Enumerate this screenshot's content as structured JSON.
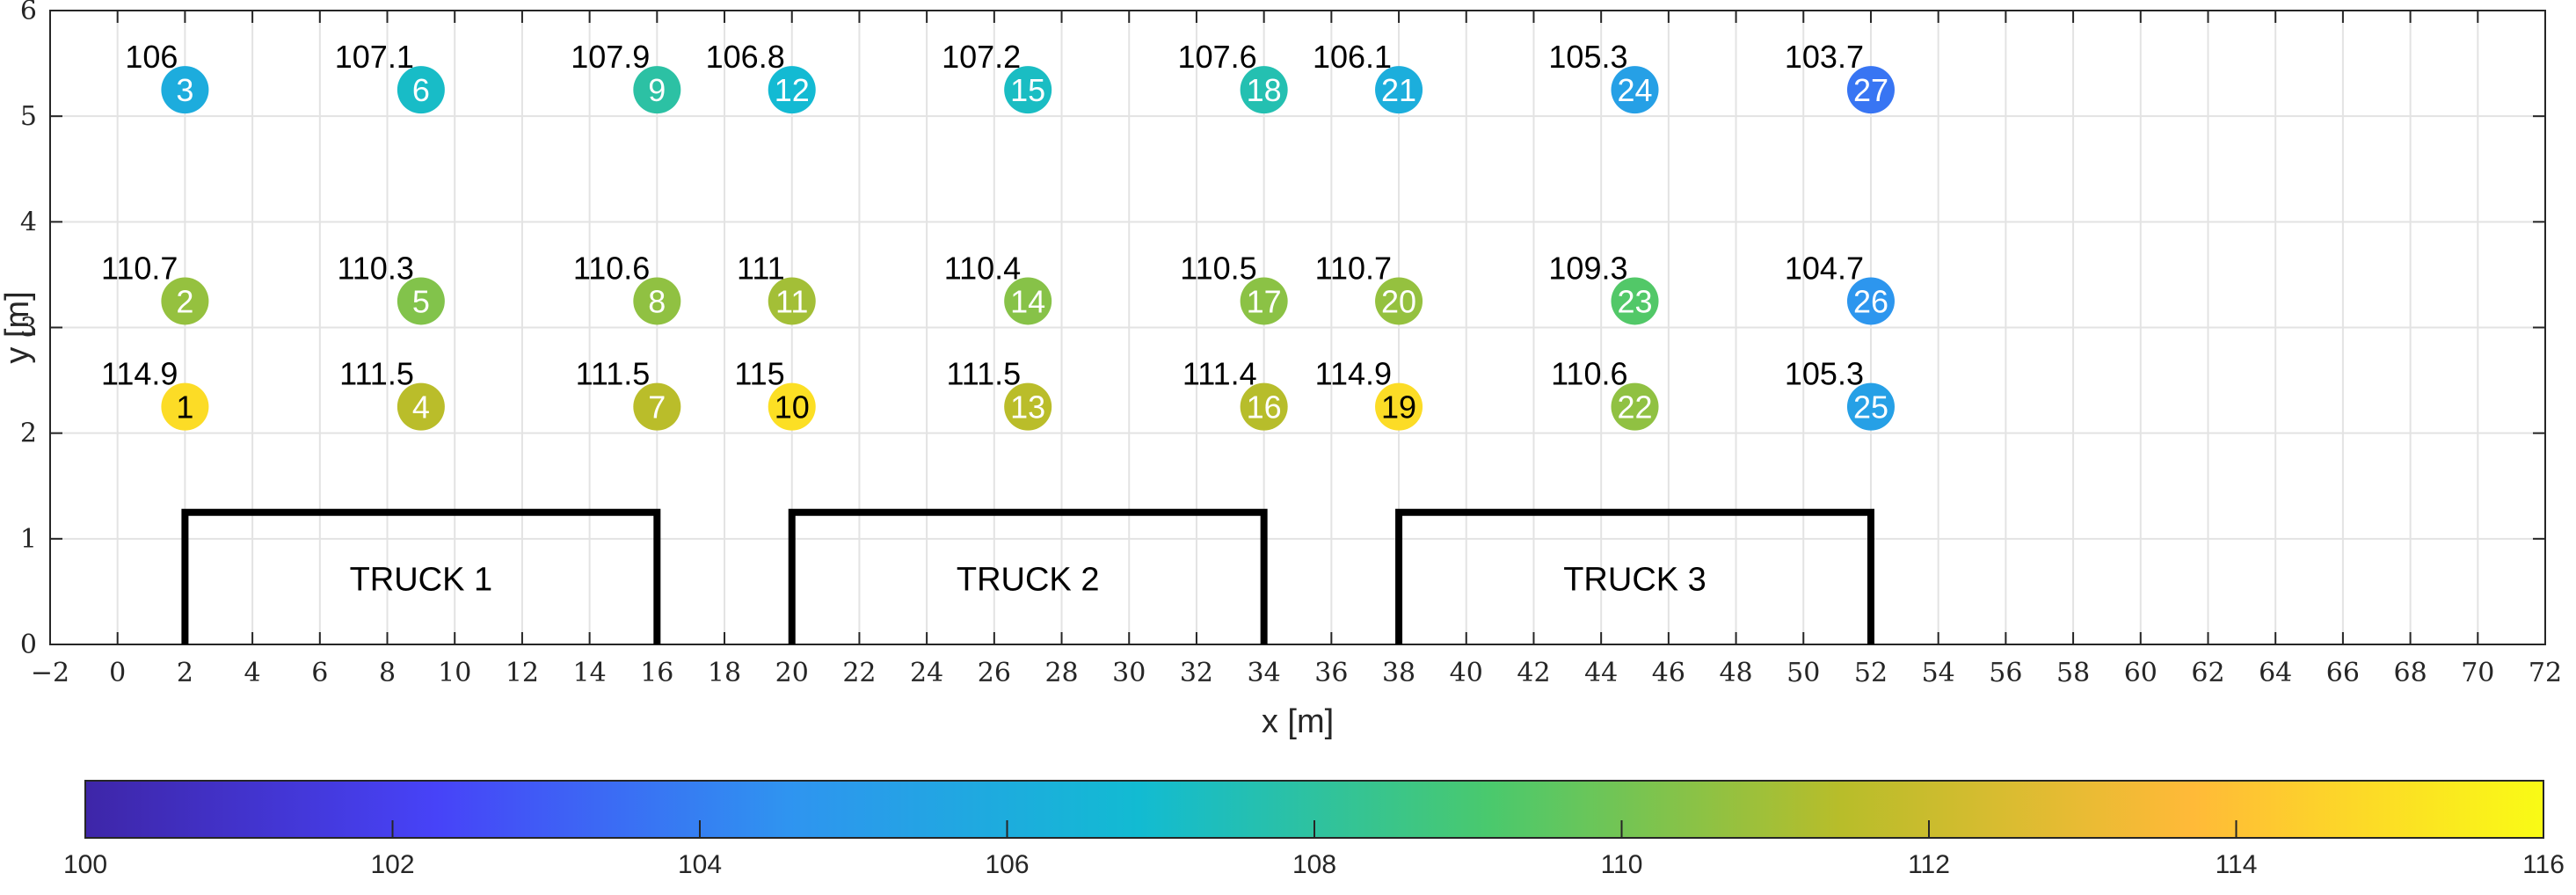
{
  "chart_data": {
    "type": "scatter",
    "title": "",
    "xlabel": "x [m]",
    "ylabel": "y [m]",
    "xlim": [
      -2,
      72
    ],
    "ylim": [
      0,
      6
    ],
    "xticks": [
      -2,
      0,
      2,
      4,
      6,
      8,
      10,
      12,
      14,
      16,
      18,
      20,
      22,
      24,
      26,
      28,
      30,
      32,
      34,
      36,
      38,
      40,
      42,
      44,
      46,
      48,
      50,
      52,
      54,
      56,
      58,
      60,
      62,
      64,
      66,
      68,
      70,
      72
    ],
    "xtick_labels": [
      "−2",
      "0",
      "2",
      "4",
      "6",
      "8",
      "10",
      "12",
      "14",
      "16",
      "18",
      "20",
      "22",
      "24",
      "26",
      "28",
      "30",
      "32",
      "34",
      "36",
      "38",
      "40",
      "42",
      "44",
      "46",
      "48",
      "50",
      "52",
      "54",
      "56",
      "58",
      "60",
      "62",
      "64",
      "66",
      "68",
      "70",
      "72"
    ],
    "yticks": [
      0,
      1,
      2,
      3,
      4,
      5,
      6
    ],
    "ytick_labels": [
      "0",
      "1",
      "2",
      "3",
      "4",
      "5",
      "6"
    ],
    "grid": true,
    "points": [
      {
        "id": "1",
        "x": 2,
        "y": 2.25,
        "value": 114.9,
        "label": "114.9"
      },
      {
        "id": "2",
        "x": 2,
        "y": 3.25,
        "value": 110.7,
        "label": "110.7"
      },
      {
        "id": "3",
        "x": 2,
        "y": 5.25,
        "value": 106,
        "label": "106"
      },
      {
        "id": "4",
        "x": 9,
        "y": 2.25,
        "value": 111.5,
        "label": "111.5"
      },
      {
        "id": "5",
        "x": 9,
        "y": 3.25,
        "value": 110.3,
        "label": "110.3"
      },
      {
        "id": "6",
        "x": 9,
        "y": 5.25,
        "value": 107.1,
        "label": "107.1"
      },
      {
        "id": "7",
        "x": 16,
        "y": 2.25,
        "value": 111.5,
        "label": "111.5"
      },
      {
        "id": "8",
        "x": 16,
        "y": 3.25,
        "value": 110.6,
        "label": "110.6"
      },
      {
        "id": "9",
        "x": 16,
        "y": 5.25,
        "value": 107.9,
        "label": "107.9"
      },
      {
        "id": "10",
        "x": 20,
        "y": 2.25,
        "value": 115,
        "label": "115"
      },
      {
        "id": "11",
        "x": 20,
        "y": 3.25,
        "value": 111,
        "label": "111"
      },
      {
        "id": "12",
        "x": 20,
        "y": 5.25,
        "value": 106.8,
        "label": "106.8"
      },
      {
        "id": "13",
        "x": 27,
        "y": 2.25,
        "value": 111.5,
        "label": "111.5"
      },
      {
        "id": "14",
        "x": 27,
        "y": 3.25,
        "value": 110.4,
        "label": "110.4"
      },
      {
        "id": "15",
        "x": 27,
        "y": 5.25,
        "value": 107.2,
        "label": "107.2"
      },
      {
        "id": "16",
        "x": 34,
        "y": 2.25,
        "value": 111.4,
        "label": "111.4"
      },
      {
        "id": "17",
        "x": 34,
        "y": 3.25,
        "value": 110.5,
        "label": "110.5"
      },
      {
        "id": "18",
        "x": 34,
        "y": 5.25,
        "value": 107.6,
        "label": "107.6"
      },
      {
        "id": "19",
        "x": 38,
        "y": 2.25,
        "value": 114.9,
        "label": "114.9"
      },
      {
        "id": "20",
        "x": 38,
        "y": 3.25,
        "value": 110.7,
        "label": "110.7"
      },
      {
        "id": "21",
        "x": 38,
        "y": 5.25,
        "value": 106.1,
        "label": "106.1"
      },
      {
        "id": "22",
        "x": 45,
        "y": 2.25,
        "value": 110.6,
        "label": "110.6"
      },
      {
        "id": "23",
        "x": 45,
        "y": 3.25,
        "value": 109.3,
        "label": "109.3"
      },
      {
        "id": "24",
        "x": 45,
        "y": 5.25,
        "value": 105.3,
        "label": "105.3"
      },
      {
        "id": "25",
        "x": 52,
        "y": 2.25,
        "value": 105.3,
        "label": "105.3"
      },
      {
        "id": "26",
        "x": 52,
        "y": 3.25,
        "value": 104.7,
        "label": "104.7"
      },
      {
        "id": "27",
        "x": 52,
        "y": 5.25,
        "value": 103.7,
        "label": "103.7"
      }
    ],
    "trucks": [
      {
        "label": "TRUCK 1",
        "x_start": 2,
        "x_end": 16,
        "height": 1.25
      },
      {
        "label": "TRUCK 2",
        "x_start": 20,
        "x_end": 34,
        "height": 1.25
      },
      {
        "label": "TRUCK 3",
        "x_start": 38,
        "x_end": 52,
        "height": 1.25
      }
    ],
    "colorbar": {
      "orientation": "horizontal",
      "placement": "bottom",
      "range": [
        100,
        116
      ],
      "ticks": [
        100,
        102,
        104,
        106,
        108,
        110,
        112,
        114,
        116
      ],
      "tick_labels": [
        "100",
        "102",
        "104",
        "106",
        "108",
        "110",
        "112",
        "114",
        "116"
      ],
      "colormap": "parula",
      "colormap_stops": [
        "#3e26a8",
        "#4743f8",
        "#2f94f0",
        "#12bbd2",
        "#4ac96d",
        "#b8bd2a",
        "#ffba38",
        "#f9fb15"
      ]
    }
  }
}
